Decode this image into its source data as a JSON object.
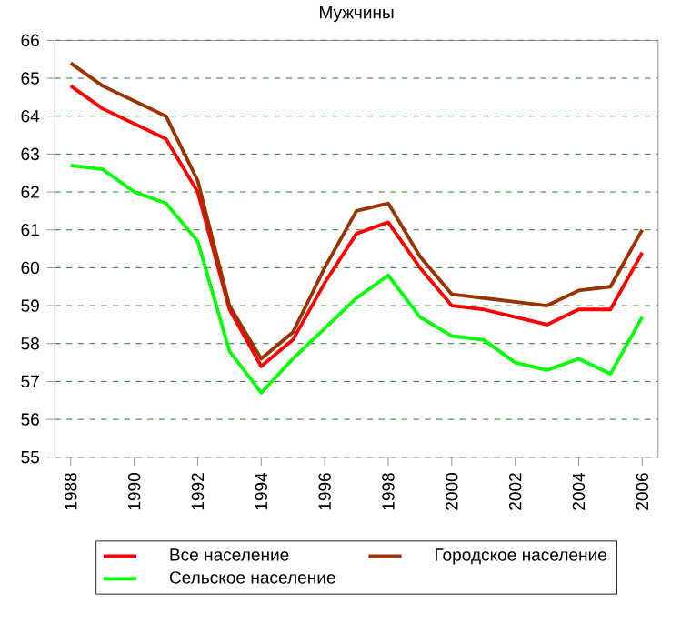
{
  "chart_data": {
    "type": "line",
    "title": "Мужчины",
    "categories": [
      "1988",
      null,
      "1990",
      null,
      "1992",
      null,
      "1994",
      null,
      "1996",
      null,
      "1998",
      null,
      "2000",
      null,
      "2002",
      null,
      "2004",
      null,
      "2006"
    ],
    "series": [
      {
        "name": "Все население",
        "color": "#ff0000",
        "values": [
          64.8,
          64.2,
          63.8,
          63.4,
          62.0,
          58.9,
          57.4,
          58.1,
          59.6,
          60.9,
          61.2,
          60.0,
          59.0,
          58.9,
          58.7,
          58.5,
          58.9,
          58.9,
          60.4
        ]
      },
      {
        "name": "Городское население",
        "color": "#993300",
        "values": [
          65.4,
          64.8,
          64.4,
          64.0,
          62.3,
          59.0,
          57.6,
          58.3,
          60.0,
          61.5,
          61.7,
          60.3,
          59.3,
          59.2,
          59.1,
          59.0,
          59.4,
          59.5,
          61.0
        ]
      },
      {
        "name": "Сельское население",
        "color": "#00ff00",
        "values": [
          62.7,
          62.6,
          62.0,
          61.7,
          60.7,
          57.8,
          56.7,
          57.6,
          58.4,
          59.2,
          59.8,
          58.7,
          58.2,
          58.1,
          57.5,
          57.3,
          57.6,
          57.2,
          58.7
        ]
      }
    ],
    "ylim": [
      55,
      66
    ],
    "yticks": [
      55,
      56,
      57,
      58,
      59,
      60,
      61,
      62,
      63,
      64,
      65,
      66
    ],
    "grid": "y",
    "legend": "bottom",
    "marker": "none",
    "line_style": "solid"
  }
}
